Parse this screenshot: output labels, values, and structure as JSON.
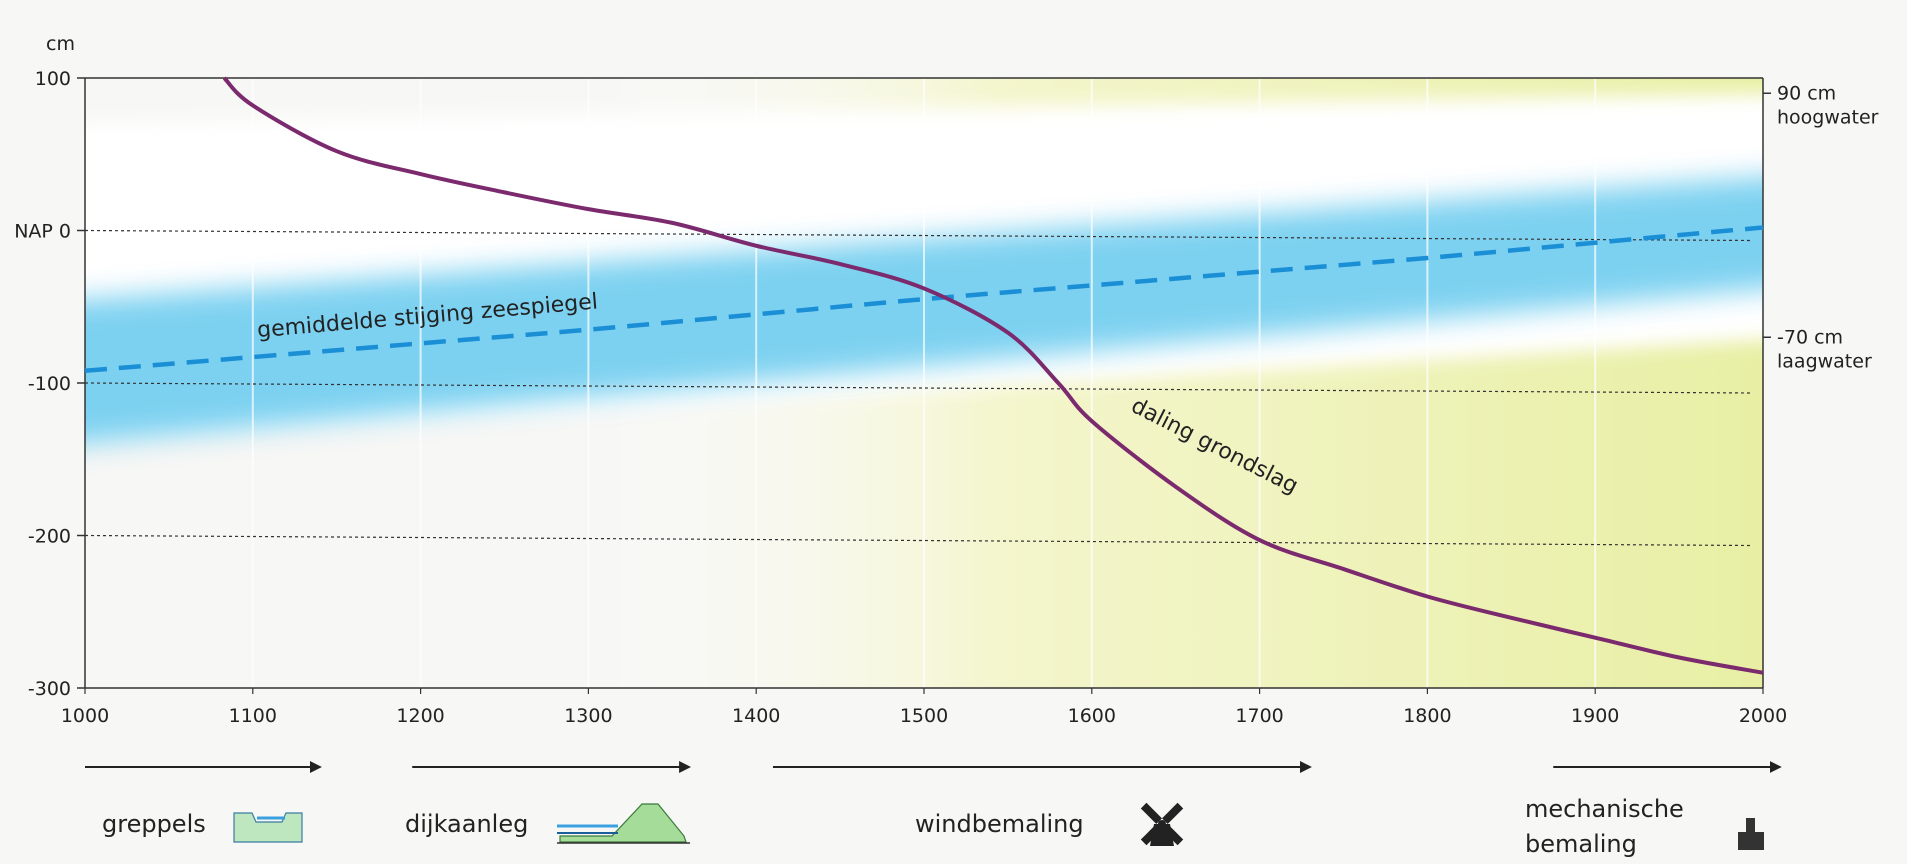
{
  "chart_data": {
    "type": "line",
    "y_unit": "cm",
    "x": [
      1000,
      1100,
      1200,
      1300,
      1400,
      1500,
      1600,
      1700,
      1800,
      1900,
      2000
    ],
    "xlim": [
      1000,
      2000
    ],
    "ylim": [
      -300,
      100
    ],
    "x_tick_labels": [
      "1000",
      "1100",
      "1200",
      "1300",
      "1400",
      "1500",
      "1600",
      "1700",
      "1800",
      "1900",
      "2000"
    ],
    "y_ticks": [
      100,
      0,
      -100,
      -200,
      -300
    ],
    "y_tick_labels": [
      "100",
      "NAP  0",
      "-100",
      "-200",
      "-300"
    ],
    "grid": "dotted horizontal lines at 0, -100, -200",
    "series": [
      {
        "name": "gemiddelde stijging zeespiegel",
        "style": "dashed",
        "color": "#1a8fd6",
        "points": [
          [
            1000,
            -92
          ],
          [
            1100,
            -83
          ],
          [
            1200,
            -74
          ],
          [
            1300,
            -65
          ],
          [
            1400,
            -55
          ],
          [
            1500,
            -45
          ],
          [
            1600,
            -36
          ],
          [
            1700,
            -27
          ],
          [
            1800,
            -18
          ],
          [
            1900,
            -8
          ],
          [
            2000,
            2
          ]
        ]
      },
      {
        "name": "daling grondslag",
        "style": "solid",
        "color": "#7b2a6e",
        "points": [
          [
            1083,
            100
          ],
          [
            1100,
            82
          ],
          [
            1150,
            52
          ],
          [
            1200,
            37
          ],
          [
            1250,
            25
          ],
          [
            1300,
            14
          ],
          [
            1350,
            5
          ],
          [
            1400,
            -10
          ],
          [
            1450,
            -22
          ],
          [
            1500,
            -38
          ],
          [
            1550,
            -67
          ],
          [
            1580,
            -100
          ],
          [
            1600,
            -125
          ],
          [
            1650,
            -168
          ],
          [
            1700,
            -203
          ],
          [
            1750,
            -222
          ],
          [
            1800,
            -240
          ],
          [
            1850,
            -254
          ],
          [
            1900,
            -267
          ],
          [
            1950,
            -280
          ],
          [
            2000,
            -290
          ]
        ]
      }
    ],
    "tide_band": {
      "high_water": [
        [
          1000,
          70
        ],
        [
          2000,
          90
        ]
      ],
      "low_water": [
        [
          1000,
          -140
        ],
        [
          2000,
          -70
        ]
      ]
    },
    "right_annotations": [
      {
        "value": 90,
        "line1": "90 cm",
        "line2": "hoogwater"
      },
      {
        "value": -70,
        "line1": "-70 cm",
        "line2": "laagwater"
      }
    ],
    "periods": [
      {
        "label": "greppels",
        "start": 1000,
        "end": 1140,
        "icon": "ditch-icon"
      },
      {
        "label": "dijkaanleg",
        "start": 1195,
        "end": 1360,
        "icon": "dike-icon"
      },
      {
        "label": "windbemaling",
        "start": 1410,
        "end": 1730,
        "icon": "windmill-icon"
      },
      {
        "label": "mechanische",
        "label2": "bemaling",
        "start": 1875,
        "end": 2010,
        "icon": "pumping-station-icon"
      }
    ]
  }
}
